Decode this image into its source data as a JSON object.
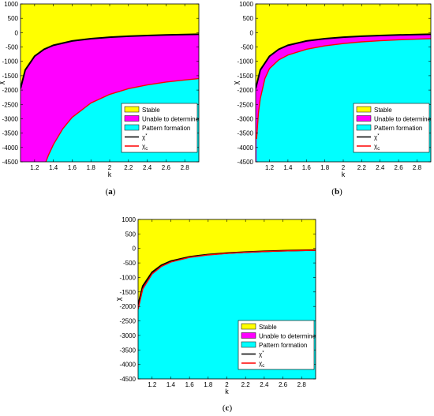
{
  "chart_data": [
    {
      "type": "area",
      "caption_label": "a",
      "title": "",
      "xlabel": "k",
      "ylabel": "χ",
      "xlim": [
        1.05,
        2.95
      ],
      "ylim": [
        -4500,
        1000
      ],
      "x_ticks": [
        "1.2",
        "1.4",
        "1.6",
        "1.8",
        "2",
        "2.2",
        "2.4",
        "2.6",
        "2.8"
      ],
      "y_ticks": [
        "1000",
        "500",
        "0",
        "-500",
        "-1000",
        "-1500",
        "-2000",
        "-2500",
        "-3000",
        "-3500",
        "-4000",
        "-4500"
      ],
      "grid": false,
      "legend_position": "bottom-right",
      "regions": [
        {
          "name": "Stable",
          "color": "#ffff00"
        },
        {
          "name": "Unable to determine",
          "color": "#ff00ff"
        },
        {
          "name": "Pattern formation",
          "color": "#00ffff"
        }
      ],
      "series": [
        {
          "name": "χ*",
          "superscript": "*",
          "color": "#000000",
          "x": [
            1.05,
            1.1,
            1.2,
            1.3,
            1.4,
            1.6,
            1.8,
            2.0,
            2.2,
            2.4,
            2.6,
            2.8,
            2.95
          ],
          "y": [
            -1950,
            -1300,
            -820,
            -580,
            -440,
            -290,
            -210,
            -160,
            -125,
            -100,
            -80,
            -65,
            -55
          ]
        },
        {
          "name": "χc",
          "subscript": "c",
          "color": "#ff0000",
          "x": [
            1.32,
            1.35,
            1.4,
            1.5,
            1.6,
            1.8,
            2.0,
            2.2,
            2.4,
            2.6,
            2.8,
            2.95
          ],
          "y": [
            -4500,
            -4250,
            -3900,
            -3350,
            -2950,
            -2450,
            -2150,
            -1950,
            -1820,
            -1720,
            -1650,
            -1600
          ]
        }
      ]
    },
    {
      "type": "area",
      "caption_label": "b",
      "title": "",
      "xlabel": "k",
      "ylabel": "χ",
      "xlim": [
        1.05,
        2.95
      ],
      "ylim": [
        -4500,
        1000
      ],
      "x_ticks": [
        "1.2",
        "1.4",
        "1.6",
        "1.8",
        "2",
        "2.2",
        "2.4",
        "2.6",
        "2.8"
      ],
      "y_ticks": [
        "1000",
        "500",
        "0",
        "-500",
        "-1000",
        "-1500",
        "-2000",
        "-2500",
        "-3000",
        "-3500",
        "-4000",
        "-4500"
      ],
      "grid": false,
      "legend_position": "bottom-right",
      "regions": [
        {
          "name": "Stable",
          "color": "#ffff00"
        },
        {
          "name": "Unable to determine",
          "color": "#ff00ff"
        },
        {
          "name": "Pattern formation",
          "color": "#00ffff"
        }
      ],
      "series": [
        {
          "name": "χ*",
          "superscript": "*",
          "color": "#000000",
          "x": [
            1.05,
            1.1,
            1.2,
            1.3,
            1.4,
            1.6,
            1.8,
            2.0,
            2.2,
            2.4,
            2.6,
            2.8,
            2.95
          ],
          "y": [
            -1950,
            -1300,
            -820,
            -580,
            -440,
            -290,
            -210,
            -160,
            -125,
            -100,
            -80,
            -65,
            -55
          ]
        },
        {
          "name": "χc",
          "subscript": "c",
          "color": "#ff0000",
          "x": [
            1.06,
            1.08,
            1.1,
            1.15,
            1.2,
            1.3,
            1.4,
            1.6,
            1.8,
            2.0,
            2.2,
            2.4,
            2.6,
            2.8,
            2.95
          ],
          "y": [
            -3700,
            -2800,
            -2300,
            -1600,
            -1250,
            -950,
            -780,
            -580,
            -460,
            -380,
            -320,
            -280,
            -250,
            -225,
            -210
          ]
        }
      ]
    },
    {
      "type": "area",
      "caption_label": "c",
      "title": "",
      "xlabel": "k",
      "ylabel": "χ",
      "xlim": [
        1.05,
        2.95
      ],
      "ylim": [
        -4500,
        1000
      ],
      "x_ticks": [
        "1.2",
        "1.4",
        "1.6",
        "1.8",
        "2",
        "2.2",
        "2.4",
        "2.6",
        "2.8"
      ],
      "y_ticks": [
        "1000",
        "500",
        "0",
        "-500",
        "-1000",
        "-1500",
        "-2000",
        "-2500",
        "-3000",
        "-3500",
        "-4000",
        "-4500"
      ],
      "grid": false,
      "legend_position": "bottom-right",
      "regions": [
        {
          "name": "Stable",
          "color": "#ffff00"
        },
        {
          "name": "Unable to determine",
          "color": "#ff00ff"
        },
        {
          "name": "Pattern formation",
          "color": "#00ffff"
        }
      ],
      "series": [
        {
          "name": "χ*",
          "superscript": "*",
          "color": "#000000",
          "x": [
            1.05,
            1.1,
            1.2,
            1.3,
            1.4,
            1.6,
            1.8,
            2.0,
            2.2,
            2.4,
            2.6,
            2.8,
            2.95
          ],
          "y": [
            -1950,
            -1300,
            -820,
            -580,
            -440,
            -290,
            -210,
            -160,
            -125,
            -100,
            -80,
            -65,
            -55
          ]
        },
        {
          "name": "χc",
          "subscript": "c",
          "color": "#ff0000",
          "x": [
            1.05,
            1.1,
            1.2,
            1.3,
            1.4,
            1.6,
            1.8,
            2.0,
            2.2,
            2.4,
            2.6,
            2.8,
            2.95
          ],
          "y": [
            -2100,
            -1400,
            -880,
            -620,
            -470,
            -310,
            -225,
            -172,
            -135,
            -108,
            -88,
            -72,
            -62
          ]
        }
      ]
    }
  ]
}
